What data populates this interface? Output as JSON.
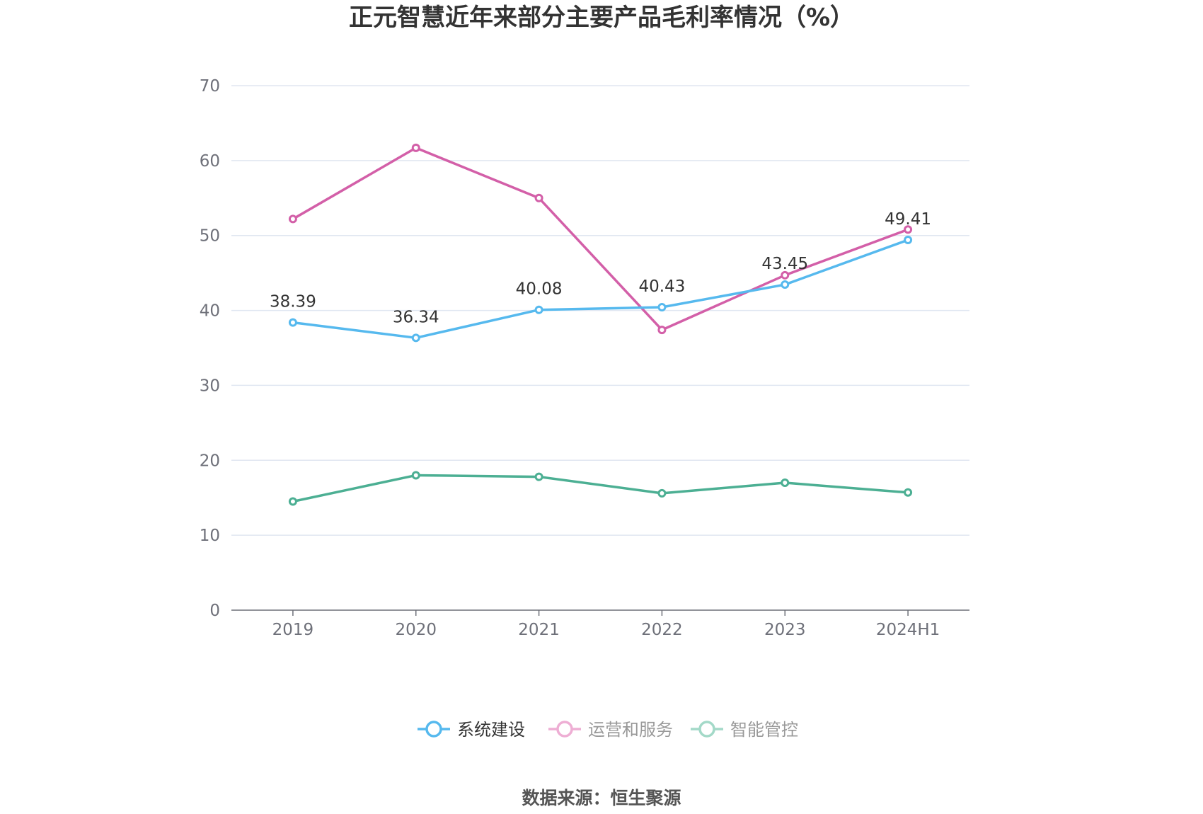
{
  "chart_data": {
    "type": "line",
    "title": "正元智慧近年来部分主要产品毛利率情况（%）",
    "categories": [
      "2019",
      "2020",
      "2021",
      "2022",
      "2023",
      "2024H1"
    ],
    "ylim": [
      0,
      70
    ],
    "yticks": [
      "0",
      "10",
      "20",
      "30",
      "40",
      "50",
      "60",
      "70"
    ],
    "grid": true,
    "series": [
      {
        "name": "系统建设",
        "color": "#56b9ee",
        "values": [
          38.39,
          36.34,
          40.08,
          40.43,
          43.45,
          49.41
        ],
        "labels": [
          "38.39",
          "36.34",
          "40.08",
          "40.43",
          "43.45",
          "49.41"
        ],
        "legend_active": true
      },
      {
        "name": "运营和服务",
        "color": "#d35fa8",
        "legend_color": "#eeaed4",
        "values": [
          52.2,
          61.7,
          55.0,
          37.4,
          44.7,
          50.8
        ],
        "legend_active": false
      },
      {
        "name": "智能管控",
        "color": "#4caf93",
        "legend_color": "#a3d9c8",
        "values": [
          14.5,
          18.0,
          17.8,
          15.6,
          17.0,
          15.7
        ],
        "legend_active": false
      }
    ],
    "legend_position": "bottom-center",
    "source": "数据来源：恒生聚源"
  }
}
